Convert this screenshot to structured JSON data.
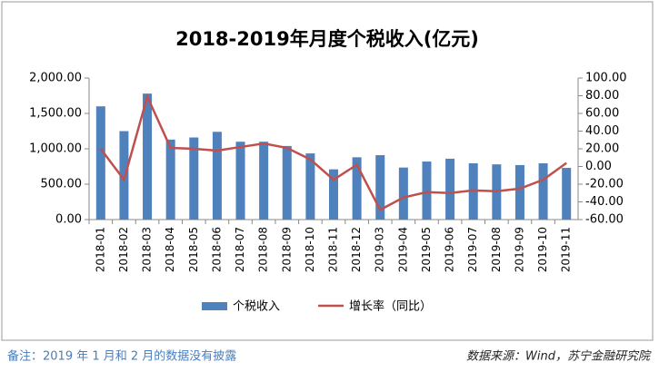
{
  "chart_data": {
    "type": "bar",
    "title": "2018-2019年月度个税收入(亿元)",
    "categories": [
      "2018-01",
      "2018-02",
      "2018-03",
      "2018-04",
      "2018-05",
      "2018-06",
      "2018-07",
      "2018-08",
      "2018-09",
      "2018-10",
      "2018-11",
      "2018-12",
      "2019-03",
      "2019-04",
      "2019-05",
      "2019-06",
      "2019-07",
      "2019-08",
      "2019-09",
      "2019-10",
      "2019-11"
    ],
    "series": [
      {
        "name": "个税收入",
        "type": "bar",
        "color": "#4f81bd",
        "values": [
          1600,
          1250,
          1780,
          1130,
          1160,
          1240,
          1100,
          1100,
          1040,
          935,
          710,
          880,
          910,
          735,
          820,
          860,
          795,
          780,
          770,
          795,
          730
        ]
      },
      {
        "name": "增长率（同比）",
        "type": "line",
        "axis": "y2",
        "color": "#c0504d",
        "values": [
          20,
          -15,
          79,
          21,
          20,
          18,
          22,
          26,
          21,
          8,
          -15,
          2,
          -49,
          -35,
          -29,
          -30,
          -27,
          -28,
          -25,
          -15,
          4
        ]
      }
    ],
    "ylim": [
      0,
      2000
    ],
    "yticks": [
      {
        "value": 0,
        "label": "0.00"
      },
      {
        "value": 500,
        "label": "500.00"
      },
      {
        "value": 1000,
        "label": "1,000.00"
      },
      {
        "value": 1500,
        "label": "1,500.00"
      },
      {
        "value": 2000,
        "label": "2,000.00"
      }
    ],
    "y2lim": [
      -60,
      100
    ],
    "y2ticks": [
      {
        "value": -60,
        "label": "-60.00"
      },
      {
        "value": -40,
        "label": "-40.00"
      },
      {
        "value": -20,
        "label": "-20.00"
      },
      {
        "value": 0,
        "label": "0.00"
      },
      {
        "value": 20,
        "label": "20.00"
      },
      {
        "value": 40,
        "label": "40.00"
      },
      {
        "value": 60,
        "label": "60.00"
      },
      {
        "value": 80,
        "label": "80.00"
      },
      {
        "value": 100,
        "label": "100.00"
      }
    ],
    "grid": false,
    "legend": "bottom"
  },
  "notes": {
    "left": "备注：2019 年 1 月和 2 月的数据没有披露",
    "right": "数据来源：Wind，苏宁金融研究院"
  }
}
